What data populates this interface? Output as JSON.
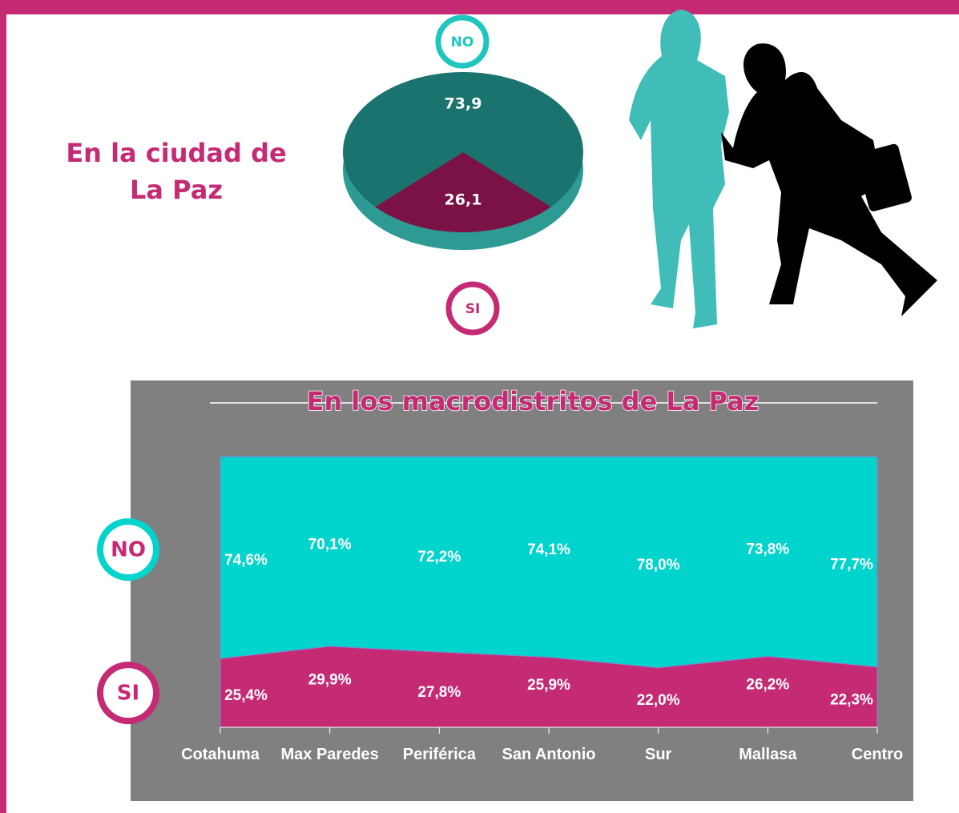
{
  "chart_data": [
    {
      "type": "pie",
      "title": "En la ciudad de La Paz",
      "categories": [
        "NO",
        "SI"
      ],
      "values": [
        73.9,
        26.1
      ],
      "value_labels": [
        "73,9",
        "26,1"
      ],
      "colors": [
        "#1b736f",
        "#7a1246"
      ],
      "label_colors": [
        "#1fc6c0",
        "#c42b74"
      ]
    },
    {
      "type": "area",
      "stacked": true,
      "title": "En los macrodistritos de La Paz",
      "categories": [
        "Cotahuma",
        "Max Paredes",
        "Periférica",
        "San Antonio",
        "Sur",
        "Mallasa",
        "Centro"
      ],
      "ylim": [
        0,
        100
      ],
      "series": [
        {
          "name": "SI",
          "color": "#c42b74",
          "values": [
            25.4,
            29.9,
            27.8,
            25.9,
            22.0,
            26.2,
            22.3
          ],
          "value_labels": [
            "25,4%",
            "29,9%",
            "27,8%",
            "25,9%",
            "22,0%",
            "26,2%",
            "22,3%"
          ]
        },
        {
          "name": "NO",
          "color": "#00d4cc",
          "values": [
            74.6,
            70.1,
            72.2,
            74.1,
            78.0,
            73.8,
            77.7
          ],
          "value_labels": [
            "74,6%",
            "70,1%",
            "72,2%",
            "74,1%",
            "78,0%",
            "73,8%",
            "77,7%"
          ]
        }
      ]
    }
  ]
}
